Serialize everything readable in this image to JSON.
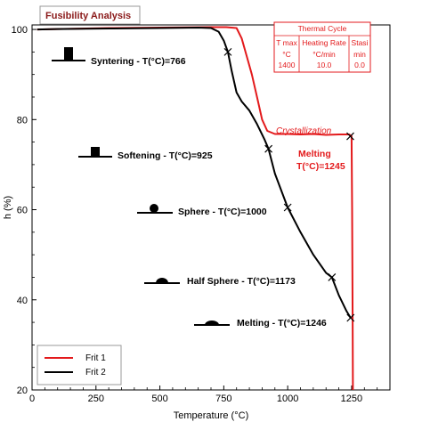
{
  "chart_title": "Fusibility Analysis",
  "chart_data": {
    "type": "line",
    "xlabel": "Temperature (°C)",
    "ylabel": "h (%)",
    "xlim": [
      0,
      1400
    ],
    "ylim": [
      20,
      101
    ],
    "xticks": [
      0,
      250,
      500,
      750,
      1000,
      1250
    ],
    "yticks": [
      20,
      40,
      60,
      80,
      100
    ],
    "grid": false,
    "legend_position": "bottom-left",
    "series": [
      {
        "name": "Frit 1",
        "color": "#e31a1c",
        "x": [
          20,
          100,
          300,
          500,
          700,
          760,
          800,
          820,
          840,
          860,
          880,
          900,
          920,
          950,
          1000,
          1050,
          1100,
          1150,
          1200,
          1240,
          1250,
          1252,
          1254,
          1255
        ],
        "y": [
          100,
          100.1,
          100.3,
          100.4,
          100.5,
          100.5,
          100.3,
          98,
          94,
          90,
          85,
          80,
          77.5,
          76.8,
          76.8,
          76.7,
          76.8,
          76.6,
          76.7,
          76.7,
          76.3,
          60,
          35,
          20
        ]
      },
      {
        "name": "Frit 2",
        "color": "#000000",
        "x": [
          20,
          100,
          300,
          500,
          650,
          700,
          730,
          750,
          766,
          780,
          800,
          820,
          850,
          880,
          910,
          925,
          950,
          1000,
          1050,
          1100,
          1150,
          1173,
          1200,
          1230,
          1246
        ],
        "y": [
          100,
          100.1,
          100.2,
          100.3,
          100.4,
          100.3,
          99.5,
          97.5,
          95,
          91,
          86,
          84,
          82,
          79,
          75.5,
          73.5,
          68,
          60.5,
          55,
          50,
          46,
          45,
          41,
          37.5,
          36
        ]
      }
    ],
    "markers": [
      {
        "series": "Frit 1",
        "x": 1245,
        "y": 76.3
      },
      {
        "series": "Frit 2",
        "x": 766,
        "y": 95
      },
      {
        "series": "Frit 2",
        "x": 925,
        "y": 73.5
      },
      {
        "series": "Frit 2",
        "x": 1000,
        "y": 60.5
      },
      {
        "series": "Frit 2",
        "x": 1173,
        "y": 45
      },
      {
        "series": "Frit 2",
        "x": 1246,
        "y": 36
      }
    ],
    "annotations": {
      "syntering": "Syntering - T(°C)=766",
      "softening": "Softening - T(°C)=925",
      "sphere": "Sphere - T(°C)=1000",
      "half_sphere": "Half Sphere - T(°C)=1173",
      "melting_black": "Melting - T(°C)=1246",
      "crystallization": "Crystallization",
      "melting_red_line1": "Melting",
      "melting_red_line2": "T(°C)=1245"
    }
  },
  "thermal_cycle": {
    "title": "Thermal Cycle",
    "headers": [
      "T max",
      "Heating Rate",
      "Stasi"
    ],
    "units": [
      "°C",
      "°C/min",
      "min"
    ],
    "values": [
      "1400",
      "10.0",
      "0.0"
    ]
  },
  "legend": {
    "frit1": "Frit 1",
    "frit2": "Frit 2"
  }
}
